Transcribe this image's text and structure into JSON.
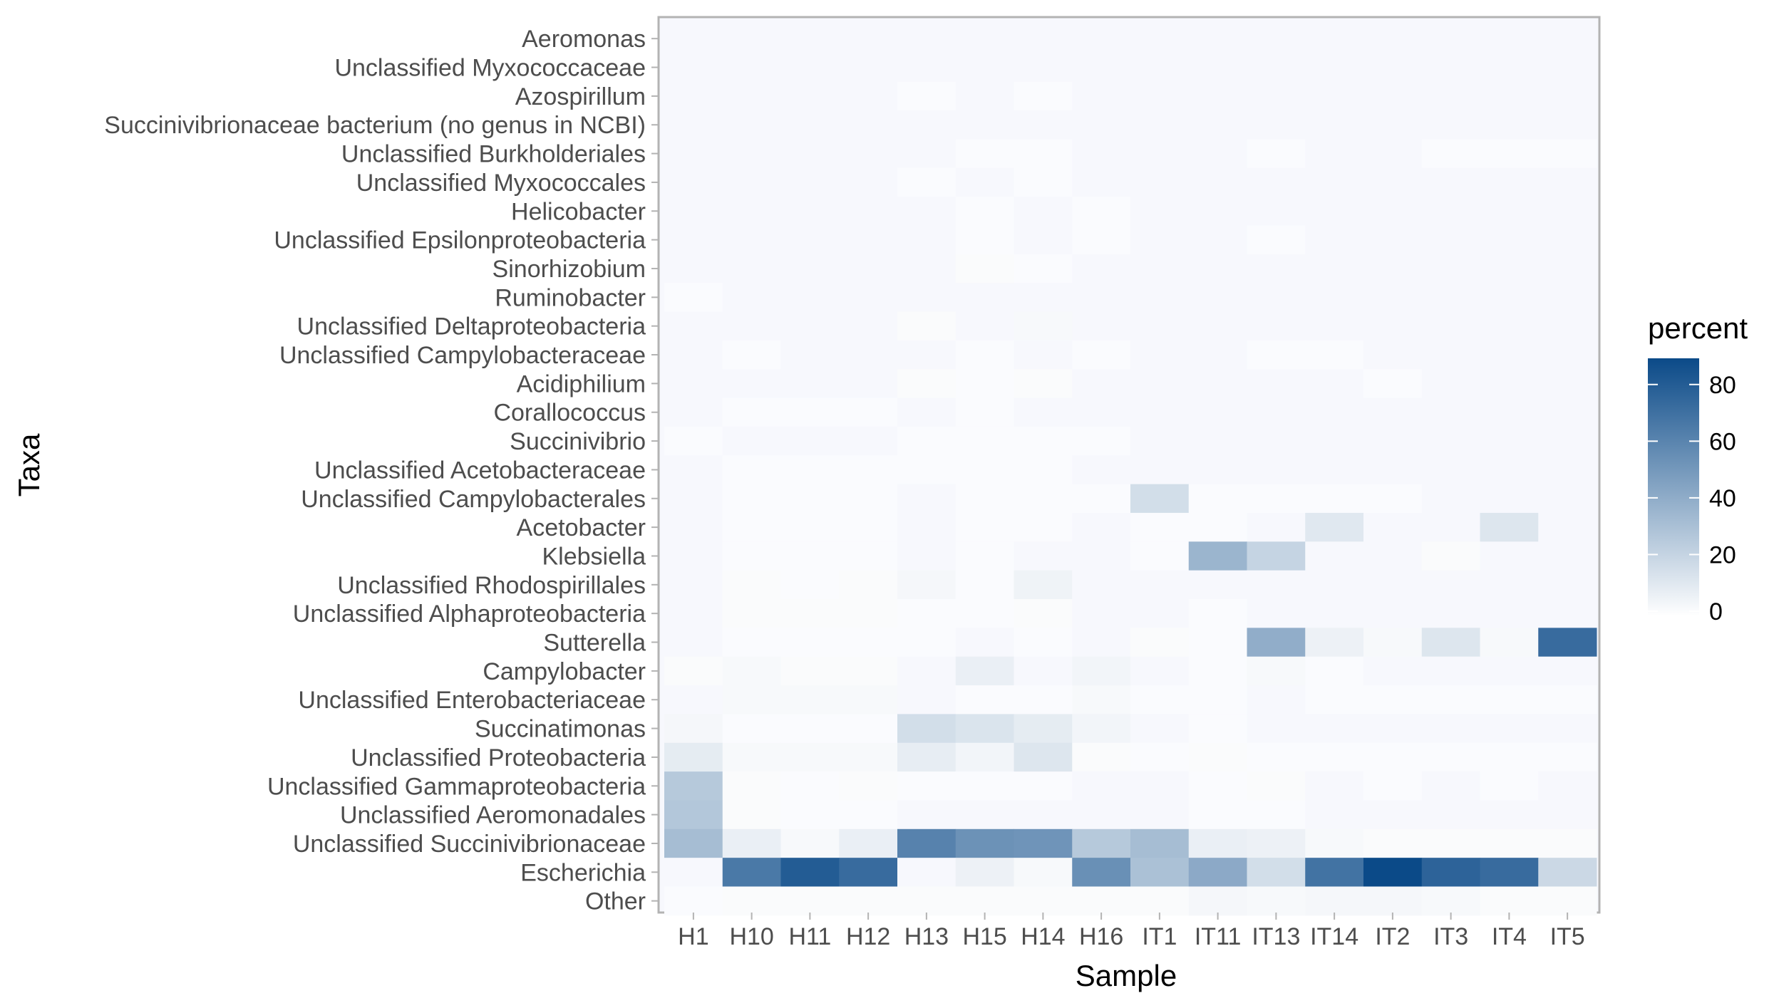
{
  "chart_data": {
    "type": "heatmap",
    "xlabel": "Sample",
    "ylabel": "Taxa",
    "x": [
      "H1",
      "H10",
      "H11",
      "H12",
      "H13",
      "H15",
      "H14",
      "H16",
      "IT1",
      "IT11",
      "IT13",
      "IT14",
      "IT2",
      "IT3",
      "IT4",
      "IT5"
    ],
    "y": [
      "Aeromonas",
      "Unclassified Myxococcaceae",
      "Azospirillum",
      "Succinivibrionaceae bacterium (no genus in NCBI)",
      "Unclassified Burkholderiales",
      "Unclassified Myxococcales",
      "Helicobacter",
      "Unclassified Epsilonproteobacteria",
      "Sinorhizobium",
      "Ruminobacter",
      "Unclassified Deltaproteobacteria",
      "Unclassified Campylobacteraceae",
      "Acidiphilium",
      "Corallococcus",
      "Succinivibrio",
      "Unclassified Acetobacteraceae",
      "Unclassified Campylobacterales",
      "Acetobacter",
      "Klebsiella",
      "Unclassified Rhodospirillales",
      "Unclassified Alphaproteobacteria",
      "Sutterella",
      "Campylobacter",
      "Unclassified Enterobacteriaceae",
      "Succinatimonas",
      "Unclassified Proteobacteria",
      "Unclassified Gammaproteobacteria",
      "Unclassified Aeromonadales",
      "Unclassified Succinivibrionaceae",
      "Escherichia",
      "Other"
    ],
    "values": [
      [
        0,
        0,
        0,
        0,
        0,
        0,
        0,
        0,
        0,
        0,
        0,
        0,
        0,
        0,
        0,
        0
      ],
      [
        0,
        0,
        0,
        0,
        0,
        0,
        0,
        0,
        0,
        0,
        0,
        0,
        0,
        0,
        0,
        0
      ],
      [
        0,
        0,
        0,
        0,
        1,
        0,
        1,
        0,
        0,
        0,
        0,
        0,
        0,
        0,
        0,
        0
      ],
      [
        0,
        0,
        0,
        0,
        0,
        0,
        0,
        0,
        0,
        0,
        0,
        0,
        0,
        0,
        0,
        0
      ],
      [
        0,
        0,
        0,
        0,
        0,
        1,
        1,
        0,
        0,
        0,
        1,
        0,
        0,
        1,
        1,
        1
      ],
      [
        0,
        0,
        0,
        0,
        1,
        0,
        1,
        0,
        0,
        0,
        0,
        0,
        0,
        0,
        0,
        0
      ],
      [
        0,
        0,
        0,
        0,
        0,
        1,
        0,
        1,
        0,
        0,
        0,
        0,
        0,
        0,
        0,
        0
      ],
      [
        0,
        0,
        0,
        0,
        0,
        1,
        0,
        1,
        0,
        0,
        1,
        0,
        0,
        0,
        0,
        0
      ],
      [
        0,
        0,
        0,
        0,
        0,
        2,
        1,
        0,
        0,
        0,
        0,
        0,
        0,
        0,
        0,
        0
      ],
      [
        1,
        0,
        0,
        0,
        0,
        0,
        0,
        0,
        0,
        0,
        0,
        0,
        0,
        0,
        0,
        0
      ],
      [
        0,
        0,
        0,
        0,
        2,
        0,
        3,
        0,
        0,
        0,
        0,
        0,
        0,
        0,
        0,
        0
      ],
      [
        0,
        1,
        0,
        0,
        0,
        1,
        0,
        1,
        0,
        0,
        1,
        1,
        0,
        0,
        0,
        0
      ],
      [
        0,
        0,
        0,
        0,
        2,
        1,
        2,
        0,
        0,
        0,
        0,
        0,
        1,
        0,
        0,
        0
      ],
      [
        0,
        1,
        1,
        1,
        0,
        1,
        0,
        0,
        0,
        0,
        0,
        0,
        0,
        0,
        0,
        0
      ],
      [
        1,
        0,
        0,
        0,
        1,
        1,
        1,
        1,
        0,
        0,
        0,
        0,
        0,
        0,
        0,
        0
      ],
      [
        0,
        1,
        1,
        1,
        1,
        1,
        1,
        0,
        0,
        0,
        0,
        0,
        0,
        0,
        0,
        0
      ],
      [
        0,
        1,
        1,
        1,
        0,
        1,
        1,
        1,
        17,
        1,
        1,
        1,
        1,
        0,
        0,
        0
      ],
      [
        0,
        1,
        1,
        1,
        0,
        1,
        1,
        0,
        1,
        1,
        0,
        12,
        0,
        0,
        13,
        0
      ],
      [
        0,
        1,
        1,
        1,
        0,
        1,
        0,
        0,
        1,
        38,
        22,
        0,
        0,
        2,
        0,
        0
      ],
      [
        0,
        2,
        1,
        2,
        4,
        1,
        6,
        0,
        0,
        0,
        0,
        0,
        0,
        0,
        0,
        0
      ],
      [
        0,
        2,
        2,
        2,
        1,
        1,
        2,
        0,
        0,
        1,
        0,
        0,
        0,
        0,
        0,
        0
      ],
      [
        0,
        1,
        1,
        1,
        1,
        0,
        1,
        0,
        2,
        1,
        42,
        7,
        3,
        13,
        3,
        76
      ],
      [
        2,
        3,
        2,
        2,
        0,
        8,
        0,
        5,
        0,
        1,
        3,
        1,
        0,
        0,
        0,
        0
      ],
      [
        0,
        3,
        3,
        3,
        0,
        1,
        1,
        3,
        1,
        1,
        0,
        1,
        1,
        1,
        1,
        1
      ],
      [
        4,
        1,
        1,
        1,
        17,
        14,
        10,
        5,
        0,
        1,
        0,
        0,
        0,
        0,
        0,
        0
      ],
      [
        10,
        3,
        3,
        3,
        9,
        5,
        13,
        2,
        1,
        2,
        1,
        1,
        1,
        1,
        1,
        1
      ],
      [
        28,
        2,
        1,
        2,
        1,
        1,
        1,
        0,
        0,
        1,
        2,
        0,
        1,
        0,
        1,
        0
      ],
      [
        29,
        2,
        1,
        1,
        0,
        0,
        0,
        0,
        0,
        1,
        1,
        0,
        0,
        0,
        0,
        0
      ],
      [
        34,
        8,
        3,
        8,
        64,
        56,
        55,
        28,
        34,
        8,
        7,
        3,
        2,
        2,
        2,
        2
      ],
      [
        0,
        69,
        84,
        76,
        0,
        7,
        3,
        57,
        32,
        44,
        17,
        72,
        93,
        80,
        76,
        20
      ],
      [
        1,
        2,
        2,
        2,
        2,
        2,
        2,
        2,
        2,
        4,
        3,
        4,
        4,
        3,
        2,
        2
      ]
    ],
    "color_scale": {
      "low": "#ffffff",
      "high": "#0b4a88",
      "min": 0,
      "max": 93
    },
    "legend": {
      "title": "percent",
      "ticks": [
        0,
        20,
        40,
        60,
        80
      ],
      "placement": "right"
    },
    "background": "#f7f8fd",
    "grid": true
  }
}
